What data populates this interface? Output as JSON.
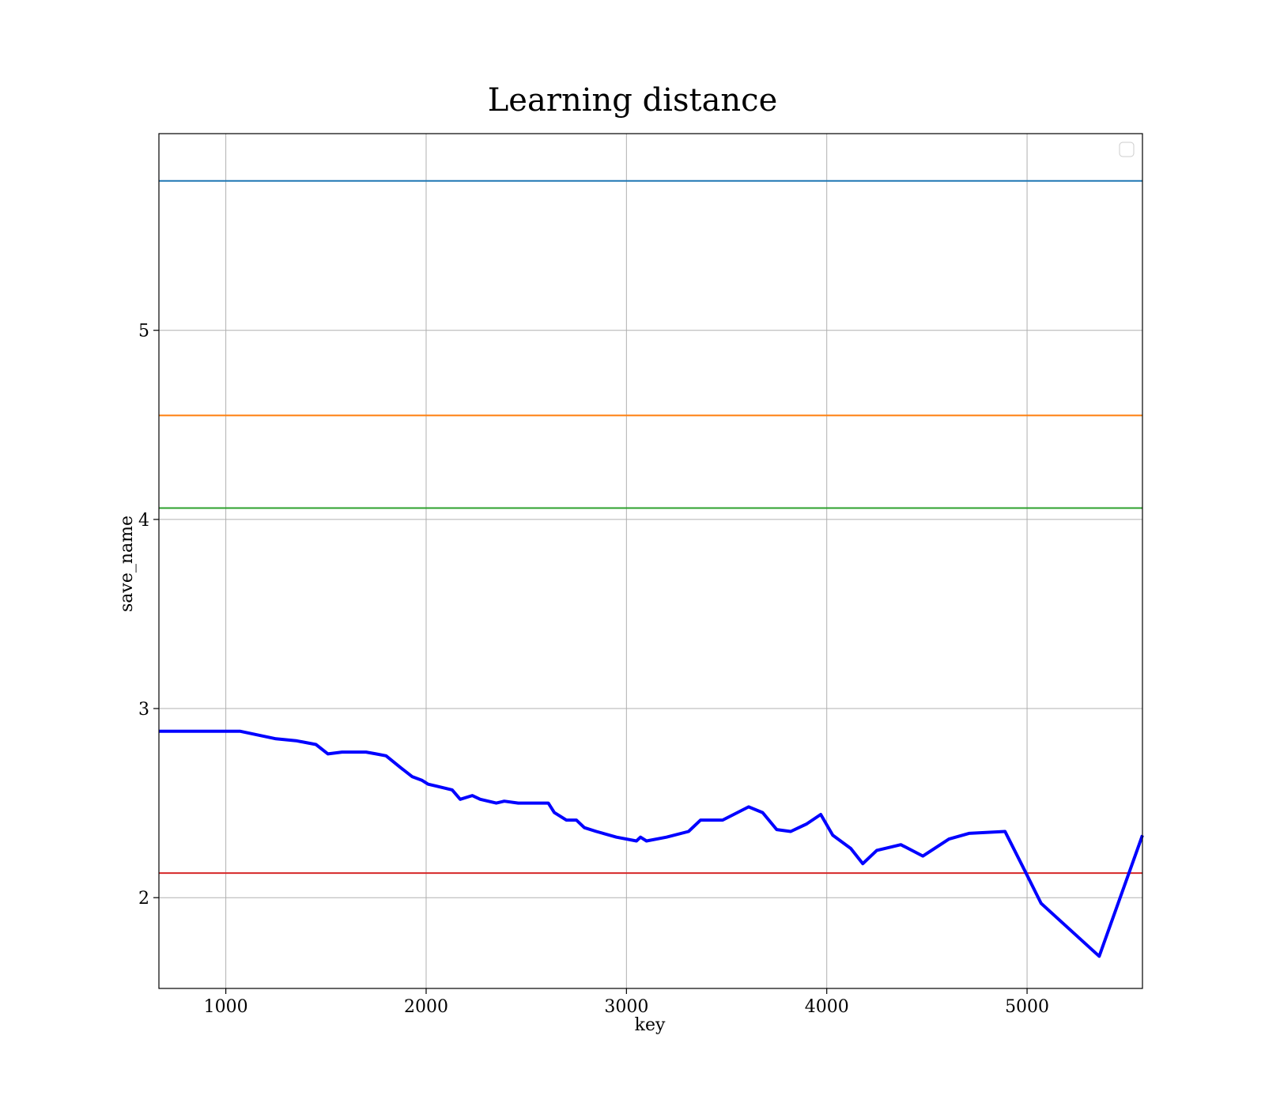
{
  "chart_data": {
    "type": "line",
    "title": "Learning distance",
    "xlabel": "key",
    "ylabel": "save_name",
    "xlim": [
      666,
      5576
    ],
    "ylim": [
      1.52,
      6.04
    ],
    "xticks": [
      1000,
      2000,
      3000,
      4000,
      5000
    ],
    "yticks": [
      2,
      3,
      4,
      5
    ],
    "grid": true,
    "legend": {
      "placement": "top-right",
      "entries": []
    },
    "hlines": [
      {
        "y": 5.79,
        "color": "#1f77b4"
      },
      {
        "y": 4.55,
        "color": "#ff7f0e"
      },
      {
        "y": 4.06,
        "color": "#2ca02c"
      },
      {
        "y": 2.13,
        "color": "#d62728"
      }
    ],
    "series": [
      {
        "color": "#0000ff",
        "x": [
          666,
          1000,
          1070,
          1250,
          1350,
          1450,
          1510,
          1580,
          1700,
          1750,
          1800,
          1870,
          1930,
          1980,
          2010,
          2050,
          2130,
          2170,
          2230,
          2270,
          2350,
          2390,
          2460,
          2510,
          2560,
          2610,
          2640,
          2700,
          2750,
          2790,
          2850,
          2950,
          3050,
          3070,
          3100,
          3200,
          3310,
          3370,
          3420,
          3480,
          3610,
          3680,
          3750,
          3820,
          3900,
          3970,
          4030,
          4120,
          4180,
          4250,
          4370,
          4480,
          4610,
          4710,
          4890,
          4990,
          5070,
          5360,
          5576
        ],
        "y": [
          2.88,
          2.88,
          2.88,
          2.84,
          2.83,
          2.81,
          2.76,
          2.77,
          2.77,
          2.76,
          2.75,
          2.69,
          2.64,
          2.62,
          2.6,
          2.59,
          2.57,
          2.52,
          2.54,
          2.52,
          2.5,
          2.51,
          2.5,
          2.5,
          2.5,
          2.5,
          2.45,
          2.41,
          2.41,
          2.37,
          2.35,
          2.32,
          2.3,
          2.32,
          2.3,
          2.32,
          2.35,
          2.41,
          2.41,
          2.41,
          2.48,
          2.45,
          2.36,
          2.35,
          2.39,
          2.44,
          2.33,
          2.26,
          2.18,
          2.25,
          2.28,
          2.22,
          2.31,
          2.34,
          2.35,
          2.14,
          1.97,
          1.69,
          2.33
        ]
      }
    ]
  }
}
